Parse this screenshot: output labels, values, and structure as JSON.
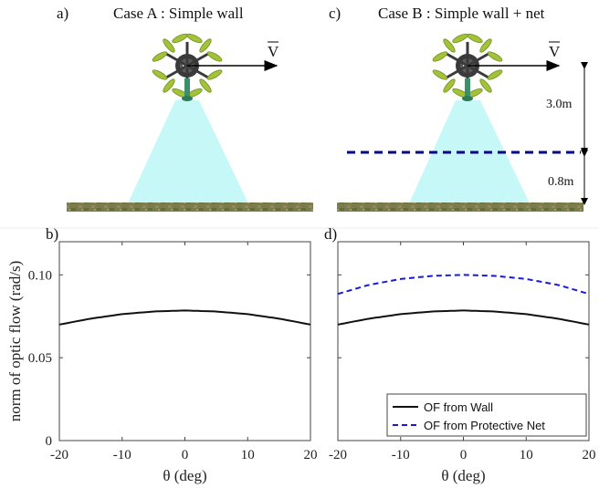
{
  "panels": {
    "a": {
      "label": "a)",
      "title": "Case A : Simple wall",
      "velocity": "V"
    },
    "b": {
      "label": "b)"
    },
    "c": {
      "label": "c)",
      "title": "Case B : Simple wall + net",
      "velocity": "V",
      "dim_upper": "3.0m",
      "dim_lower": "0.8m"
    },
    "d": {
      "label": "d)"
    }
  },
  "colors": {
    "wall": "#111111",
    "net": "#1a1ad6",
    "cone": "#c6f8f8",
    "ground": "#7d7a4e",
    "net_line": "#00008b"
  },
  "chart_data": [
    {
      "type": "line",
      "title": "",
      "xlabel": "θ (deg)",
      "ylabel": "norm of optic flow (rad/s)",
      "xlim": [
        -20,
        20
      ],
      "ylim": [
        0,
        0.12
      ],
      "xticks": [
        -20,
        -10,
        0,
        10,
        20
      ],
      "yticks": [
        0,
        0.05,
        0.1
      ],
      "ytick_labels": [
        "0",
        "0.05",
        "0.10"
      ],
      "grid": false,
      "series": [
        {
          "style": "solid",
          "color": "#111111",
          "x": [
            -20,
            -15,
            -10,
            -5,
            0,
            5,
            10,
            15,
            20
          ],
          "y": [
            0.07,
            0.0736,
            0.0763,
            0.0779,
            0.0785,
            0.0779,
            0.0763,
            0.0736,
            0.07
          ]
        }
      ]
    },
    {
      "type": "line",
      "title": "",
      "xlabel": "θ (deg)",
      "ylabel": "",
      "xlim": [
        -20,
        20
      ],
      "ylim": [
        0,
        0.12
      ],
      "xticks": [
        -20,
        -10,
        0,
        10,
        20
      ],
      "yticks": [
        0,
        0.05,
        0.1
      ],
      "grid": false,
      "legend": "bottom-right",
      "series": [
        {
          "name": "OF from Wall",
          "style": "solid",
          "color": "#111111",
          "x": [
            -20,
            -15,
            -10,
            -5,
            0,
            5,
            10,
            15,
            20
          ],
          "y": [
            0.07,
            0.0736,
            0.0763,
            0.0779,
            0.0785,
            0.0779,
            0.0763,
            0.0736,
            0.07
          ]
        },
        {
          "name": "OF from Protective Net",
          "style": "dashed",
          "color": "#1a1ad6",
          "x": [
            -20,
            -15,
            -10,
            -5,
            0,
            5,
            10,
            15,
            20
          ],
          "y": [
            0.0885,
            0.094,
            0.0975,
            0.0994,
            0.1,
            0.0994,
            0.0975,
            0.094,
            0.0885
          ]
        }
      ]
    }
  ]
}
